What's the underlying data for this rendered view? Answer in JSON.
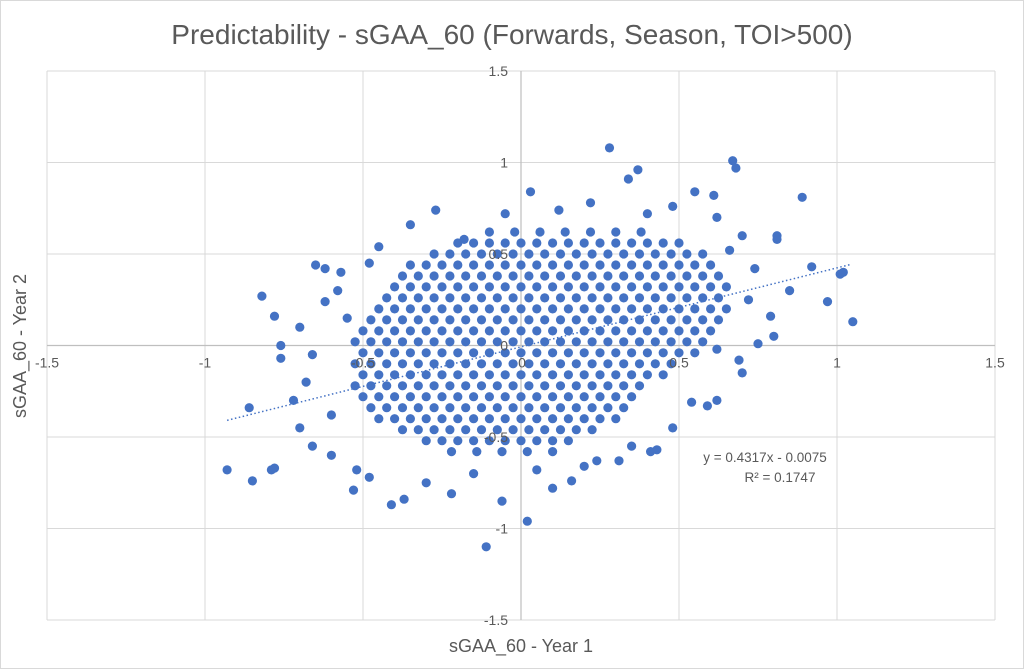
{
  "chart_data": {
    "type": "scatter",
    "title": "Predictability - sGAA_60 (Forwards, Season, TOI>500)",
    "xlabel": "sGAA_60 - Year 1",
    "ylabel": "sGAA_60 - Year 2",
    "xlim": [
      -1.5,
      1.5
    ],
    "ylim": [
      -1.5,
      1.5
    ],
    "x_ticks": [
      "-1.5",
      "-1",
      "-0.5",
      "0",
      "0.5",
      "1",
      "1.5"
    ],
    "y_ticks": [
      "1.5",
      "1",
      "0.5",
      "0",
      "-0.5",
      "-1",
      "-1.5"
    ],
    "grid": true,
    "legend": "none",
    "marker_color": "#4472C4",
    "trendline": {
      "type": "linear",
      "slope": 0.4317,
      "intercept": -0.0075,
      "x_range": [
        -0.93,
        1.04
      ],
      "style": "dotted"
    },
    "equation_label": "y = 0.4317x - 0.0075",
    "r2_label": "R² = 0.1747",
    "outlier_points": [
      [
        -0.93,
        -0.68
      ],
      [
        -0.85,
        -0.74
      ],
      [
        -0.79,
        -0.68
      ],
      [
        -0.78,
        -0.67
      ],
      [
        -0.86,
        -0.34
      ],
      [
        -0.82,
        0.27
      ],
      [
        -0.78,
        0.16
      ],
      [
        -0.76,
        0
      ],
      [
        -0.76,
        -0.07
      ],
      [
        -0.65,
        0.44
      ],
      [
        -0.62,
        0.42
      ],
      [
        -0.57,
        0.4
      ],
      [
        -0.62,
        0.24
      ],
      [
        -0.45,
        0.54
      ],
      [
        -0.27,
        0.74
      ],
      [
        -0.18,
        0.58
      ],
      [
        -0.11,
        -1.1
      ],
      [
        0.02,
        -0.96
      ],
      [
        -0.41,
        -0.87
      ],
      [
        -0.37,
        -0.84
      ],
      [
        -0.53,
        -0.79
      ],
      [
        -0.22,
        -0.81
      ],
      [
        -0.06,
        -0.85
      ],
      [
        0.1,
        -0.78
      ],
      [
        0.16,
        -0.74
      ],
      [
        0.28,
        1.08
      ],
      [
        0.34,
        0.91
      ],
      [
        0.37,
        0.96
      ],
      [
        0.03,
        0.84
      ],
      [
        0.67,
        1.01
      ],
      [
        0.68,
        0.97
      ],
      [
        0.89,
        0.81
      ],
      [
        0.55,
        0.84
      ],
      [
        0.61,
        0.82
      ],
      [
        0.81,
        0.6
      ],
      [
        0.81,
        0.58
      ],
      [
        0.92,
        0.43
      ],
      [
        1.02,
        0.4
      ],
      [
        1.01,
        0.39
      ],
      [
        0.97,
        0.24
      ],
      [
        1.05,
        0.13
      ],
      [
        0.79,
        0.16
      ],
      [
        0.75,
        0.01
      ],
      [
        0.69,
        -0.08
      ],
      [
        0.62,
        -0.02
      ],
      [
        0.54,
        -0.31
      ],
      [
        0.59,
        -0.33
      ],
      [
        0.41,
        -0.58
      ],
      [
        0.43,
        -0.57
      ],
      [
        0.31,
        -0.63
      ],
      [
        0.24,
        -0.63
      ],
      [
        -0.7,
        -0.45
      ],
      [
        -0.66,
        -0.55
      ],
      [
        -0.6,
        -0.6
      ],
      [
        -0.72,
        -0.3
      ],
      [
        -0.68,
        -0.2
      ],
      [
        -0.7,
        0.1
      ],
      [
        -0.66,
        -0.05
      ],
      [
        -0.58,
        0.3
      ],
      [
        -0.55,
        0.15
      ],
      [
        -0.6,
        -0.38
      ],
      [
        -0.52,
        -0.68
      ],
      [
        -0.48,
        -0.72
      ],
      [
        -0.3,
        -0.75
      ],
      [
        -0.15,
        -0.7
      ],
      [
        0.05,
        -0.68
      ],
      [
        0.2,
        -0.66
      ],
      [
        0.35,
        -0.55
      ],
      [
        0.48,
        -0.45
      ],
      [
        0.62,
        -0.3
      ],
      [
        0.7,
        -0.15
      ],
      [
        0.72,
        0.25
      ],
      [
        0.74,
        0.42
      ],
      [
        0.7,
        0.6
      ],
      [
        0.62,
        0.7
      ],
      [
        0.48,
        0.76
      ],
      [
        0.4,
        0.72
      ],
      [
        0.22,
        0.78
      ],
      [
        0.12,
        0.74
      ],
      [
        -0.05,
        0.72
      ],
      [
        -0.35,
        0.66
      ],
      [
        -0.48,
        0.45
      ],
      [
        0.85,
        0.3
      ],
      [
        0.8,
        0.05
      ],
      [
        0.66,
        0.52
      ]
    ],
    "cloud_rows": [
      {
        "y": 0.62,
        "x": [
          -0.1,
          -0.02,
          0.06,
          0.14,
          0.22,
          0.3,
          0.38
        ]
      },
      {
        "y": 0.56,
        "x": [
          -0.2,
          -0.15,
          -0.1,
          -0.05,
          0,
          0.05,
          0.1,
          0.15,
          0.2,
          0.25,
          0.3,
          0.35,
          0.4,
          0.45,
          0.5
        ]
      },
      {
        "y": 0.5,
        "x": [
          -0.275,
          -0.225,
          -0.175,
          -0.125,
          -0.075,
          -0.025,
          0.025,
          0.075,
          0.125,
          0.175,
          0.225,
          0.275,
          0.325,
          0.375,
          0.425,
          0.475,
          0.525,
          0.575
        ]
      },
      {
        "y": 0.44,
        "x": [
          -0.35,
          -0.3,
          -0.25,
          -0.2,
          -0.15,
          -0.1,
          -0.05,
          0,
          0.05,
          0.1,
          0.15,
          0.2,
          0.25,
          0.3,
          0.35,
          0.4,
          0.45,
          0.5,
          0.55,
          0.6
        ]
      },
      {
        "y": 0.38,
        "x": [
          -0.375,
          -0.325,
          -0.275,
          -0.225,
          -0.175,
          -0.125,
          -0.075,
          -0.025,
          0.025,
          0.075,
          0.125,
          0.175,
          0.225,
          0.275,
          0.325,
          0.375,
          0.425,
          0.475,
          0.525,
          0.575,
          0.625
        ]
      },
      {
        "y": 0.32,
        "x": [
          -0.4,
          -0.35,
          -0.3,
          -0.25,
          -0.2,
          -0.15,
          -0.1,
          -0.05,
          0,
          0.05,
          0.1,
          0.15,
          0.2,
          0.25,
          0.3,
          0.35,
          0.4,
          0.45,
          0.5,
          0.55,
          0.6,
          0.65
        ]
      },
      {
        "y": 0.26,
        "x": [
          -0.425,
          -0.375,
          -0.325,
          -0.275,
          -0.225,
          -0.175,
          -0.125,
          -0.075,
          -0.025,
          0.025,
          0.075,
          0.125,
          0.175,
          0.225,
          0.275,
          0.325,
          0.375,
          0.425,
          0.475,
          0.525,
          0.575,
          0.625
        ]
      },
      {
        "y": 0.2,
        "x": [
          -0.45,
          -0.4,
          -0.35,
          -0.3,
          -0.25,
          -0.2,
          -0.15,
          -0.1,
          -0.05,
          0,
          0.05,
          0.1,
          0.15,
          0.2,
          0.25,
          0.3,
          0.35,
          0.4,
          0.45,
          0.5,
          0.55,
          0.6,
          0.65
        ]
      },
      {
        "y": 0.14,
        "x": [
          -0.475,
          -0.425,
          -0.375,
          -0.325,
          -0.275,
          -0.225,
          -0.175,
          -0.125,
          -0.075,
          -0.025,
          0.025,
          0.075,
          0.125,
          0.175,
          0.225,
          0.275,
          0.325,
          0.375,
          0.425,
          0.475,
          0.525,
          0.575,
          0.625
        ]
      },
      {
        "y": 0.08,
        "x": [
          -0.5,
          -0.45,
          -0.4,
          -0.35,
          -0.3,
          -0.25,
          -0.2,
          -0.15,
          -0.1,
          -0.05,
          0,
          0.05,
          0.1,
          0.15,
          0.2,
          0.25,
          0.3,
          0.35,
          0.4,
          0.45,
          0.5,
          0.55,
          0.6
        ]
      },
      {
        "y": 0.02,
        "x": [
          -0.525,
          -0.475,
          -0.425,
          -0.375,
          -0.325,
          -0.275,
          -0.225,
          -0.175,
          -0.125,
          -0.075,
          -0.025,
          0.025,
          0.075,
          0.125,
          0.175,
          0.225,
          0.275,
          0.325,
          0.375,
          0.425,
          0.475,
          0.525,
          0.575
        ]
      },
      {
        "y": -0.04,
        "x": [
          -0.5,
          -0.45,
          -0.4,
          -0.35,
          -0.3,
          -0.25,
          -0.2,
          -0.15,
          -0.1,
          -0.05,
          0,
          0.05,
          0.1,
          0.15,
          0.2,
          0.25,
          0.3,
          0.35,
          0.4,
          0.45,
          0.5,
          0.55
        ]
      },
      {
        "y": -0.1,
        "x": [
          -0.525,
          -0.475,
          -0.425,
          -0.375,
          -0.325,
          -0.275,
          -0.225,
          -0.175,
          -0.125,
          -0.075,
          -0.025,
          0.025,
          0.075,
          0.125,
          0.175,
          0.225,
          0.275,
          0.325,
          0.375,
          0.425,
          0.475
        ]
      },
      {
        "y": -0.16,
        "x": [
          -0.5,
          -0.45,
          -0.4,
          -0.35,
          -0.3,
          -0.25,
          -0.2,
          -0.15,
          -0.1,
          -0.05,
          0,
          0.05,
          0.1,
          0.15,
          0.2,
          0.25,
          0.3,
          0.35,
          0.4,
          0.45
        ]
      },
      {
        "y": -0.22,
        "x": [
          -0.525,
          -0.475,
          -0.425,
          -0.375,
          -0.325,
          -0.275,
          -0.225,
          -0.175,
          -0.125,
          -0.075,
          -0.025,
          0.025,
          0.075,
          0.125,
          0.175,
          0.225,
          0.275,
          0.325,
          0.375
        ]
      },
      {
        "y": -0.28,
        "x": [
          -0.5,
          -0.45,
          -0.4,
          -0.35,
          -0.3,
          -0.25,
          -0.2,
          -0.15,
          -0.1,
          -0.05,
          0,
          0.05,
          0.1,
          0.15,
          0.2,
          0.25,
          0.3,
          0.35
        ]
      },
      {
        "y": -0.34,
        "x": [
          -0.475,
          -0.425,
          -0.375,
          -0.325,
          -0.275,
          -0.225,
          -0.175,
          -0.125,
          -0.075,
          -0.025,
          0.025,
          0.075,
          0.125,
          0.175,
          0.225,
          0.275,
          0.325
        ]
      },
      {
        "y": -0.4,
        "x": [
          -0.45,
          -0.4,
          -0.35,
          -0.3,
          -0.25,
          -0.2,
          -0.15,
          -0.1,
          -0.05,
          0,
          0.05,
          0.1,
          0.15,
          0.2,
          0.25,
          0.3
        ]
      },
      {
        "y": -0.46,
        "x": [
          -0.375,
          -0.325,
          -0.275,
          -0.225,
          -0.175,
          -0.125,
          -0.075,
          -0.025,
          0.025,
          0.075,
          0.125,
          0.175,
          0.225
        ]
      },
      {
        "y": -0.52,
        "x": [
          -0.3,
          -0.25,
          -0.2,
          -0.15,
          -0.1,
          -0.05,
          0,
          0.05,
          0.1,
          0.15
        ]
      },
      {
        "y": -0.58,
        "x": [
          -0.22,
          -0.14,
          -0.06,
          0.02,
          0.1
        ]
      }
    ]
  }
}
